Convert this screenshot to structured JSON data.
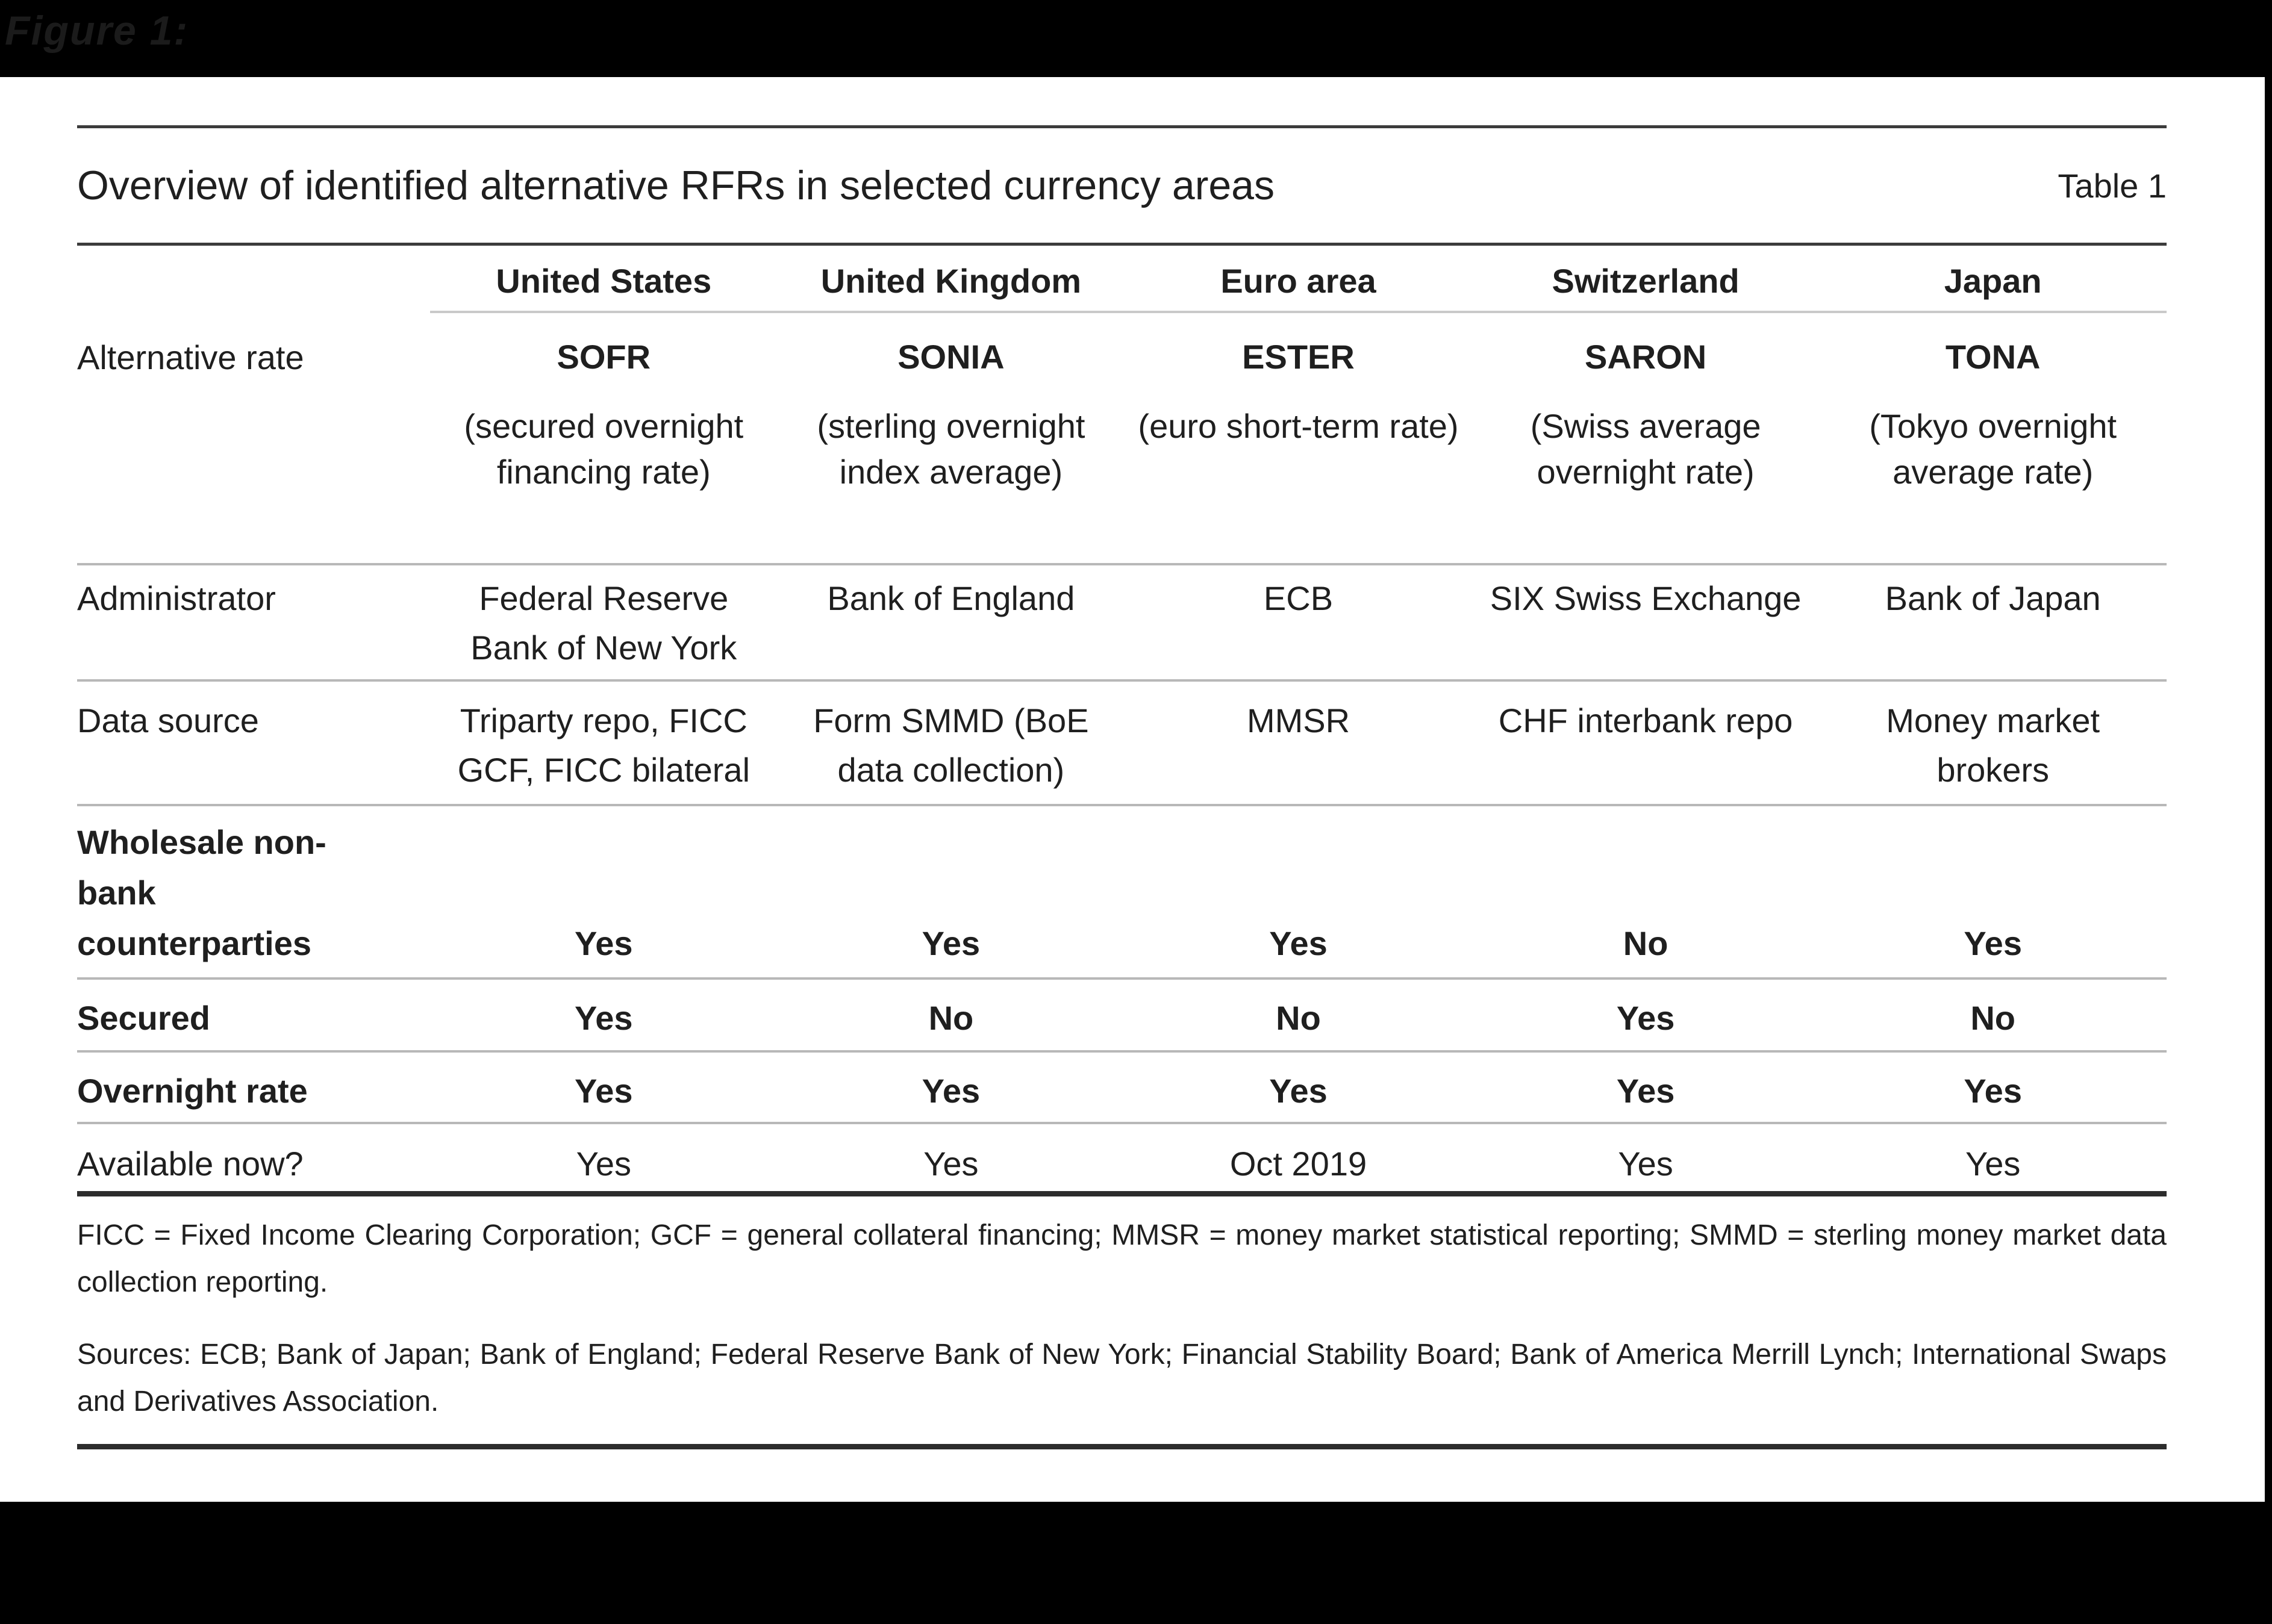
{
  "figure_label": "Figure 1:",
  "header": {
    "title": "Overview of identified alternative RFRs in selected currency areas",
    "table_number": "Table 1"
  },
  "table": {
    "column_headers": [
      "United States",
      "United Kingdom",
      "Euro area",
      "Switzerland",
      "Japan"
    ],
    "alternative_rate": {
      "label": "Alternative rate",
      "rates": [
        {
          "name": "SOFR",
          "description": "(secured overnight financing rate)"
        },
        {
          "name": "SONIA",
          "description": "(sterling overnight index average)"
        },
        {
          "name": "ESTER",
          "description": "(euro short-term rate)"
        },
        {
          "name": "SARON",
          "description": "(Swiss average overnight rate)"
        },
        {
          "name": "TONA",
          "description": "(Tokyo overnight average rate)"
        }
      ]
    },
    "rows": [
      {
        "label": "Administrator",
        "cells": [
          "Federal Reserve Bank of New York",
          "Bank of England",
          "ECB",
          "SIX Swiss Exchange",
          "Bank of Japan"
        ]
      },
      {
        "label": "Data source",
        "cells": [
          "Triparty repo, FICC GCF, FICC bilateral",
          "Form SMMD (BoE data collection)",
          "MMSR",
          "CHF interbank repo",
          "Money market brokers"
        ]
      },
      {
        "label": "Wholesale non-bank counterparties",
        "cells": [
          "Yes",
          "Yes",
          "Yes",
          "No",
          "Yes"
        ]
      },
      {
        "label": "Secured",
        "cells": [
          "Yes",
          "No",
          "No",
          "Yes",
          "No"
        ]
      },
      {
        "label": "Overnight rate",
        "cells": [
          "Yes",
          "Yes",
          "Yes",
          "Yes",
          "Yes"
        ]
      },
      {
        "label": "Available now?",
        "cells": [
          "Yes",
          "Yes",
          "Oct 2019",
          "Yes",
          "Yes"
        ]
      }
    ]
  },
  "footnotes": {
    "abbreviations": "FICC = Fixed Income Clearing Corporation; GCF = general collateral financing; MMSR = money market statistical reporting; SMMD = sterling money market data collection reporting.",
    "sources": "Sources: ECB; Bank of Japan; Bank of England; Federal Reserve Bank of New York; Financial Stability Board; Bank of America Merrill Lynch; International Swaps and Derivatives Association."
  },
  "colors": {
    "frame_bg": "#000000",
    "page_bg": "#ffffff",
    "text": "#1f1f1f",
    "rule_dark": "#3c3c3c",
    "rule_light": "#b8b8b8",
    "rule_thick": "#2d2d2d"
  }
}
